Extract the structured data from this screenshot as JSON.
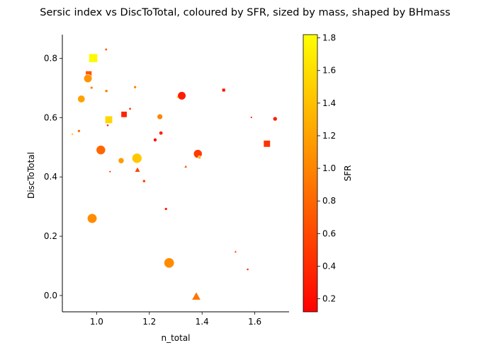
{
  "chart_data": {
    "type": "scatter",
    "title": "Sersic index vs DiscToTotal, coloured by SFR, sized by mass, shaped by BHmass",
    "xlabel": "n_total",
    "ylabel": "DiscToTotal",
    "xlim": [
      0.87,
      1.73
    ],
    "ylim": [
      -0.055,
      0.88
    ],
    "xticks": [
      "1.0",
      "1.2",
      "1.4",
      "1.6"
    ],
    "yticks": [
      "0.0",
      "0.2",
      "0.4",
      "0.6",
      "0.8"
    ],
    "colorbar": {
      "label": "SFR",
      "range": [
        0.12,
        1.82
      ],
      "ticks": [
        "0.2",
        "0.4",
        "0.6",
        "0.8",
        "1.0",
        "1.2",
        "1.4",
        "1.6",
        "1.8"
      ],
      "colormap": [
        "#ff0000",
        "#ff8000",
        "#ffff00"
      ]
    },
    "grid": false,
    "points": [
      {
        "x": 0.987,
        "y": 0.801,
        "sfr": 1.78,
        "size": 110,
        "marker": "square"
      },
      {
        "x": 0.97,
        "y": 0.747,
        "sfr": 0.7,
        "size": 55,
        "marker": "square"
      },
      {
        "x": 0.967,
        "y": 0.732,
        "sfr": 1.1,
        "size": 110,
        "marker": "circle"
      },
      {
        "x": 1.036,
        "y": 0.83,
        "sfr": 0.75,
        "size": 10,
        "marker": "circle"
      },
      {
        "x": 0.981,
        "y": 0.701,
        "sfr": 0.95,
        "size": 12,
        "marker": "circle"
      },
      {
        "x": 1.037,
        "y": 0.69,
        "sfr": 1.0,
        "size": 15,
        "marker": "circle"
      },
      {
        "x": 1.146,
        "y": 0.703,
        "sfr": 0.95,
        "size": 12,
        "marker": "circle"
      },
      {
        "x": 1.127,
        "y": 0.63,
        "sfr": 0.6,
        "size": 10,
        "marker": "circle"
      },
      {
        "x": 0.942,
        "y": 0.663,
        "sfr": 1.2,
        "size": 90,
        "marker": "circle"
      },
      {
        "x": 1.046,
        "y": 0.593,
        "sfr": 1.55,
        "size": 80,
        "marker": "square"
      },
      {
        "x": 1.104,
        "y": 0.611,
        "sfr": 0.35,
        "size": 50,
        "marker": "square"
      },
      {
        "x": 1.042,
        "y": 0.574,
        "sfr": 0.3,
        "size": 8,
        "marker": "circle"
      },
      {
        "x": 0.933,
        "y": 0.555,
        "sfr": 0.8,
        "size": 12,
        "marker": "circle"
      },
      {
        "x": 0.908,
        "y": 0.545,
        "sfr": 1.4,
        "size": 6,
        "marker": "triangle"
      },
      {
        "x": 1.24,
        "y": 0.603,
        "sfr": 1.0,
        "size": 50,
        "marker": "circle"
      },
      {
        "x": 1.244,
        "y": 0.548,
        "sfr": 0.35,
        "size": 25,
        "marker": "circle"
      },
      {
        "x": 1.222,
        "y": 0.525,
        "sfr": 0.2,
        "size": 20,
        "marker": "circle"
      },
      {
        "x": 1.016,
        "y": 0.491,
        "sfr": 0.8,
        "size": 140,
        "marker": "circle"
      },
      {
        "x": 1.153,
        "y": 0.463,
        "sfr": 1.45,
        "size": 160,
        "marker": "circle"
      },
      {
        "x": 1.093,
        "y": 0.455,
        "sfr": 1.15,
        "size": 55,
        "marker": "circle"
      },
      {
        "x": 1.051,
        "y": 0.418,
        "sfr": 0.3,
        "size": 6,
        "marker": "circle"
      },
      {
        "x": 1.155,
        "y": 0.424,
        "sfr": 0.55,
        "size": 30,
        "marker": "triangle"
      },
      {
        "x": 1.18,
        "y": 0.386,
        "sfr": 0.55,
        "size": 14,
        "marker": "circle"
      },
      {
        "x": 1.323,
        "y": 0.674,
        "sfr": 0.3,
        "size": 110,
        "marker": "circle"
      },
      {
        "x": 1.307,
        "y": 0.67,
        "sfr": 1.4,
        "size": 6,
        "marker": "triangle"
      },
      {
        "x": 1.384,
        "y": 0.478,
        "sfr": 0.5,
        "size": 120,
        "marker": "circle"
      },
      {
        "x": 1.39,
        "y": 0.466,
        "sfr": 1.3,
        "size": 15,
        "marker": "circle"
      },
      {
        "x": 1.338,
        "y": 0.435,
        "sfr": 0.6,
        "size": 8,
        "marker": "triangle"
      },
      {
        "x": 1.482,
        "y": 0.693,
        "sfr": 0.2,
        "size": 14,
        "marker": "square"
      },
      {
        "x": 1.587,
        "y": 0.601,
        "sfr": 0.2,
        "size": 6,
        "marker": "circle"
      },
      {
        "x": 1.677,
        "y": 0.596,
        "sfr": 0.3,
        "size": 30,
        "marker": "circle"
      },
      {
        "x": 1.646,
        "y": 0.512,
        "sfr": 0.45,
        "size": 65,
        "marker": "square"
      },
      {
        "x": 1.263,
        "y": 0.292,
        "sfr": 0.3,
        "size": 12,
        "marker": "circle"
      },
      {
        "x": 0.983,
        "y": 0.26,
        "sfr": 1.05,
        "size": 150,
        "marker": "circle"
      },
      {
        "x": 1.527,
        "y": 0.148,
        "sfr": 0.6,
        "size": 6,
        "marker": "triangle"
      },
      {
        "x": 1.275,
        "y": 0.11,
        "sfr": 1.05,
        "size": 170,
        "marker": "circle"
      },
      {
        "x": 1.573,
        "y": 0.088,
        "sfr": 0.4,
        "size": 8,
        "marker": "circle"
      },
      {
        "x": 1.378,
        "y": -0.003,
        "sfr": 0.9,
        "size": 85,
        "marker": "triangle"
      }
    ]
  }
}
